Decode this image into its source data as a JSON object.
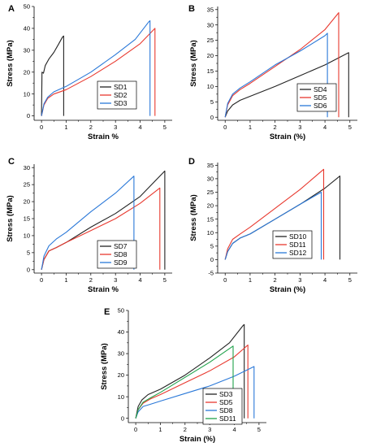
{
  "colors": {
    "black": "#222222",
    "red": "#e8392f",
    "blue": "#2a78d8",
    "green": "#1fa24b"
  },
  "chart_data": [
    {
      "panel": "A",
      "type": "line",
      "xlabel": "Strain %",
      "ylabel": "Stress (MPa)",
      "xlim": [
        -0.3,
        5.3
      ],
      "ylim": [
        -2,
        50
      ],
      "xticks": [
        "0",
        "1",
        "2",
        "3",
        "4",
        "5"
      ],
      "yticks": [
        "0",
        "10",
        "20",
        "30",
        "40",
        "50"
      ],
      "legend_position": "bottom-right",
      "series": [
        {
          "name": "SD1",
          "color": "black",
          "points": [
            [
              0,
              0
            ],
            [
              0.02,
              20
            ],
            [
              0.08,
              19.5
            ],
            [
              0.15,
              23
            ],
            [
              0.3,
              26
            ],
            [
              0.5,
              29
            ],
            [
              0.7,
              33
            ],
            [
              0.85,
              36
            ],
            [
              0.9,
              36.5
            ],
            [
              0.9,
              0
            ]
          ]
        },
        {
          "name": "SD2",
          "color": "red",
          "points": [
            [
              0,
              0
            ],
            [
              0.1,
              5
            ],
            [
              0.25,
              8
            ],
            [
              0.5,
              10
            ],
            [
              1,
              12
            ],
            [
              2,
              18
            ],
            [
              3,
              25
            ],
            [
              4,
              33
            ],
            [
              4.6,
              40
            ],
            [
              4.6,
              0
            ]
          ]
        },
        {
          "name": "SD3",
          "color": "blue",
          "points": [
            [
              0,
              0
            ],
            [
              0.1,
              5.5
            ],
            [
              0.25,
              8.5
            ],
            [
              0.5,
              11
            ],
            [
              1,
              13.5
            ],
            [
              2,
              20
            ],
            [
              3,
              28
            ],
            [
              3.8,
              35
            ],
            [
              4.35,
              43
            ],
            [
              4.4,
              43.5
            ],
            [
              4.4,
              0
            ]
          ]
        }
      ]
    },
    {
      "panel": "B",
      "type": "line",
      "xlabel": "Strain (%)",
      "ylabel": "Stress (MPa)",
      "xlim": [
        -0.3,
        5.3
      ],
      "ylim": [
        -1,
        36
      ],
      "xticks": [
        "0",
        "1",
        "2",
        "3",
        "4",
        "5"
      ],
      "yticks": [
        "0",
        "5",
        "10",
        "15",
        "20",
        "25",
        "30",
        "35"
      ],
      "legend_position": "bottom-right",
      "series": [
        {
          "name": "SD4",
          "color": "black",
          "points": [
            [
              0,
              0
            ],
            [
              0.1,
              2
            ],
            [
              0.3,
              4
            ],
            [
              0.6,
              5.5
            ],
            [
              1,
              6.8
            ],
            [
              2,
              10
            ],
            [
              3,
              13.5
            ],
            [
              4,
              17
            ],
            [
              4.95,
              21
            ],
            [
              4.95,
              0
            ]
          ]
        },
        {
          "name": "SD5",
          "color": "red",
          "points": [
            [
              0,
              0
            ],
            [
              0.1,
              4
            ],
            [
              0.3,
              7
            ],
            [
              0.6,
              9
            ],
            [
              1,
              11
            ],
            [
              2,
              16.5
            ],
            [
              3,
              22
            ],
            [
              4,
              28.5
            ],
            [
              4.55,
              34
            ],
            [
              4.55,
              0
            ]
          ]
        },
        {
          "name": "SD6",
          "color": "blue",
          "points": [
            [
              0,
              0
            ],
            [
              0.1,
              4.5
            ],
            [
              0.3,
              7.5
            ],
            [
              0.6,
              9.5
            ],
            [
              1,
              11.5
            ],
            [
              2,
              17
            ],
            [
              3,
              21.5
            ],
            [
              4,
              26.5
            ],
            [
              4.1,
              27.3
            ],
            [
              4.1,
              0
            ]
          ]
        }
      ]
    },
    {
      "panel": "C",
      "type": "line",
      "xlabel": "Strain %",
      "ylabel": "Stress (MPa)",
      "xlim": [
        -0.3,
        5.3
      ],
      "ylim": [
        -1,
        31
      ],
      "xticks": [
        "0",
        "1",
        "2",
        "3",
        "4",
        "5"
      ],
      "yticks": [
        "0",
        "5",
        "10",
        "15",
        "20",
        "25",
        "30"
      ],
      "legend_position": "bottom-right",
      "series": [
        {
          "name": "SD7",
          "color": "black",
          "points": [
            [
              0,
              0
            ],
            [
              0.1,
              3
            ],
            [
              0.3,
              5.5
            ],
            [
              0.6,
              6.5
            ],
            [
              1,
              8
            ],
            [
              2,
              12.5
            ],
            [
              3,
              16.5
            ],
            [
              4,
              21.5
            ],
            [
              5,
              29
            ],
            [
              5,
              0
            ]
          ]
        },
        {
          "name": "SD8",
          "color": "red",
          "points": [
            [
              0,
              0
            ],
            [
              0.1,
              3
            ],
            [
              0.3,
              5.5
            ],
            [
              0.6,
              6.5
            ],
            [
              1,
              8
            ],
            [
              2,
              11.5
            ],
            [
              3,
              15
            ],
            [
              4,
              19.5
            ],
            [
              4.8,
              24
            ],
            [
              4.8,
              0
            ]
          ]
        },
        {
          "name": "SD9",
          "color": "blue",
          "points": [
            [
              0,
              0
            ],
            [
              0.1,
              4
            ],
            [
              0.3,
              7
            ],
            [
              0.6,
              9
            ],
            [
              1,
              11
            ],
            [
              2,
              17
            ],
            [
              3,
              22.5
            ],
            [
              3.75,
              27.5
            ],
            [
              3.75,
              0
            ]
          ]
        }
      ]
    },
    {
      "panel": "D",
      "type": "line",
      "xlabel": "Strain (%)",
      "ylabel": "Stress (MPa)",
      "xlim": [
        -0.3,
        5.3
      ],
      "ylim": [
        -5,
        36
      ],
      "xticks": [
        "0",
        "1",
        "2",
        "3",
        "4",
        "5"
      ],
      "yticks": [
        "-5",
        "0",
        "5",
        "10",
        "15",
        "20",
        "25",
        "30",
        "35"
      ],
      "legend_position": "bottom-right",
      "series": [
        {
          "name": "SD10",
          "color": "black",
          "points": [
            [
              0,
              0
            ],
            [
              0.1,
              3
            ],
            [
              0.3,
              6
            ],
            [
              0.6,
              8
            ],
            [
              1,
              9.5
            ],
            [
              2,
              15
            ],
            [
              3,
              20.5
            ],
            [
              4,
              26.5
            ],
            [
              4.6,
              31
            ],
            [
              4.6,
              0
            ]
          ]
        },
        {
          "name": "SD11",
          "color": "red",
          "points": [
            [
              0,
              0
            ],
            [
              0.1,
              4
            ],
            [
              0.3,
              7.5
            ],
            [
              0.6,
              9.5
            ],
            [
              1,
              12
            ],
            [
              2,
              19
            ],
            [
              3,
              26
            ],
            [
              3.95,
              33.5
            ],
            [
              3.95,
              0
            ]
          ]
        },
        {
          "name": "SD12",
          "color": "blue",
          "points": [
            [
              0,
              0
            ],
            [
              0.1,
              3
            ],
            [
              0.3,
              6
            ],
            [
              0.6,
              8
            ],
            [
              1,
              9.5
            ],
            [
              2,
              15
            ],
            [
              3,
              20.5
            ],
            [
              3.85,
              25
            ],
            [
              3.85,
              0
            ]
          ]
        }
      ]
    },
    {
      "panel": "E",
      "type": "line",
      "xlabel": "Strain (%)",
      "ylabel": "Stress (MPa)",
      "xlim": [
        -0.3,
        5.3
      ],
      "ylim": [
        -2,
        50
      ],
      "xticks": [
        "0",
        "1",
        "2",
        "3",
        "4",
        "5"
      ],
      "yticks": [
        "0",
        "10",
        "20",
        "30",
        "40",
        "50"
      ],
      "legend_position": "bottom-right",
      "series": [
        {
          "name": "SD3",
          "color": "black",
          "points": [
            [
              0,
              0
            ],
            [
              0.1,
              5.5
            ],
            [
              0.25,
              8.5
            ],
            [
              0.5,
              11
            ],
            [
              1,
              13.5
            ],
            [
              2,
              20
            ],
            [
              3,
              28
            ],
            [
              3.8,
              35
            ],
            [
              4.35,
              43
            ],
            [
              4.4,
              43.5
            ],
            [
              4.4,
              0
            ]
          ]
        },
        {
          "name": "SD5",
          "color": "red",
          "points": [
            [
              0,
              0
            ],
            [
              0.1,
              4
            ],
            [
              0.3,
              7
            ],
            [
              0.6,
              9
            ],
            [
              1,
              11
            ],
            [
              2,
              16.5
            ],
            [
              3,
              22
            ],
            [
              4,
              28.5
            ],
            [
              4.55,
              34
            ],
            [
              4.55,
              0
            ]
          ]
        },
        {
          "name": "SD8",
          "color": "blue",
          "points": [
            [
              0,
              0
            ],
            [
              0.1,
              3
            ],
            [
              0.3,
              5.5
            ],
            [
              0.6,
              6.5
            ],
            [
              1,
              8
            ],
            [
              2,
              11.5
            ],
            [
              3,
              15
            ],
            [
              4,
              19.5
            ],
            [
              4.8,
              24
            ],
            [
              4.8,
              0
            ]
          ]
        },
        {
          "name": "SD11",
          "color": "green",
          "points": [
            [
              0,
              0
            ],
            [
              0.1,
              4
            ],
            [
              0.3,
              7.5
            ],
            [
              0.6,
              9.5
            ],
            [
              1,
              12
            ],
            [
              2,
              19
            ],
            [
              3,
              26
            ],
            [
              3.95,
              33.5
            ],
            [
              3.95,
              0
            ]
          ]
        }
      ]
    }
  ]
}
